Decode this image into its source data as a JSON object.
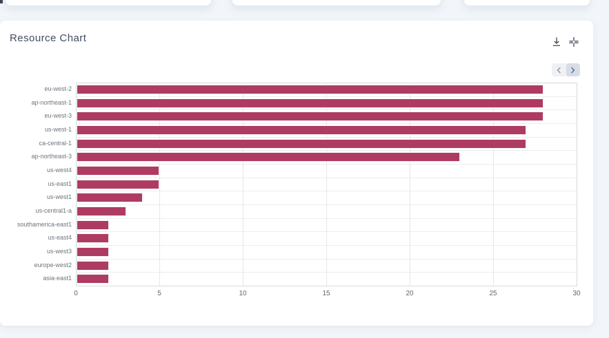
{
  "page": {
    "background_color": "#f2f5f9"
  },
  "panel": {
    "title": "Resource Chart",
    "toolbar": {
      "icons": [
        "download-icon",
        "collapse-icon"
      ]
    },
    "pagination": {
      "buttons": [
        "chevron-left",
        "chevron-right"
      ]
    }
  },
  "chart_data": {
    "type": "bar",
    "orientation": "horizontal",
    "title": "Resource Chart",
    "categories": [
      "eu-west-2",
      "ap-northeast-1",
      "eu-west-3",
      "us-west-1",
      "ca-central-1",
      "ap-northeast-3",
      "us-west4",
      "us-east1",
      "us-west1",
      "us-central1-a",
      "southamerica-east1",
      "us-east4",
      "us-west3",
      "europe-west2",
      "asia-east1"
    ],
    "values": [
      28,
      28,
      28,
      27,
      27,
      23,
      5,
      5,
      4,
      3,
      2,
      2,
      2,
      2,
      2
    ],
    "xlabel": "",
    "ylabel": "",
    "xlim": [
      0,
      30
    ],
    "xticks": [
      0,
      5,
      10,
      15,
      20,
      25,
      30
    ],
    "grid": true,
    "legend": false,
    "bar_color": "#ae3b62"
  }
}
